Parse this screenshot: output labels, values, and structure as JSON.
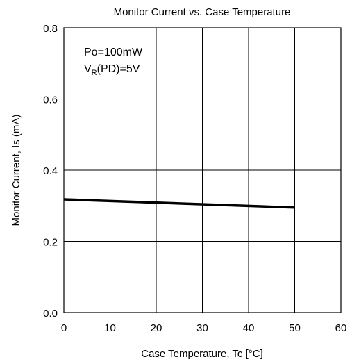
{
  "chart_data": {
    "type": "line",
    "title": "Monitor Current vs. Case Temperature",
    "xlabel": "Case Temperature, Tc [°C]",
    "ylabel": "Monitor Current, Is (mA)",
    "xlim": [
      0,
      60
    ],
    "ylim": [
      0.0,
      0.8
    ],
    "xticks": [
      0,
      10,
      20,
      30,
      40,
      50,
      60
    ],
    "yticks": [
      0.0,
      0.2,
      0.4,
      0.6,
      0.8
    ],
    "xtick_labels": [
      "0",
      "10",
      "20",
      "30",
      "40",
      "50",
      "60"
    ],
    "ytick_labels": [
      "0.0",
      "0.2",
      "0.4",
      "0.6",
      "0.8"
    ],
    "grid": true,
    "annotations": {
      "line1": "Po=100mW",
      "line2_prefix": "V",
      "line2_sub": "R",
      "line2_suffix": "(PD)=5V"
    },
    "series": [
      {
        "x": [
          0,
          50
        ],
        "y": [
          0.318,
          0.295
        ]
      }
    ]
  }
}
